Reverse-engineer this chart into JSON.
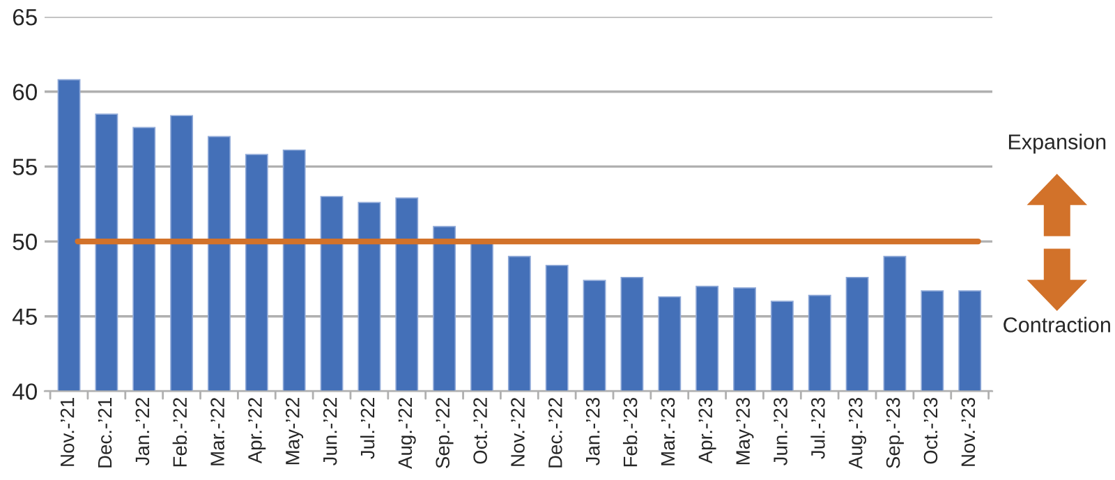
{
  "chart_data": {
    "type": "bar",
    "categories": [
      "Nov.-’21",
      "Dec.-’21",
      "Jan.-’22",
      "Feb.-’22",
      "Mar.-’22",
      "Apr.-’22",
      "May-’22",
      "Jun.-’22",
      "Jul.-’22",
      "Aug.-’22",
      "Sep.-’22",
      "Oct.-’22",
      "Nov.-’22",
      "Dec.-’22",
      "Jan.-’23",
      "Feb.-’23",
      "Mar.-’23",
      "Apr.-’23",
      "May-’23",
      "Jun.-’23",
      "Jul.-’23",
      "Aug.-’23",
      "Sep.-’23",
      "Oct.-’23",
      "Nov.-’23"
    ],
    "values": [
      60.8,
      58.5,
      57.6,
      58.4,
      57.0,
      55.8,
      56.1,
      53.0,
      52.6,
      52.9,
      51.0,
      50.0,
      49.0,
      48.4,
      47.4,
      47.6,
      46.3,
      47.0,
      46.9,
      46.0,
      46.4,
      47.6,
      49.0,
      46.7,
      46.7
    ],
    "color": "#4470b8",
    "ylim": [
      40,
      65
    ],
    "yticks": [
      40,
      45,
      50,
      55,
      60,
      65
    ],
    "grid": "y",
    "ref_lines": [
      {
        "axis": "y",
        "value": 50,
        "color": "#d2722a"
      }
    ],
    "annotations": [
      "Expansion",
      "Contraction"
    ]
  }
}
